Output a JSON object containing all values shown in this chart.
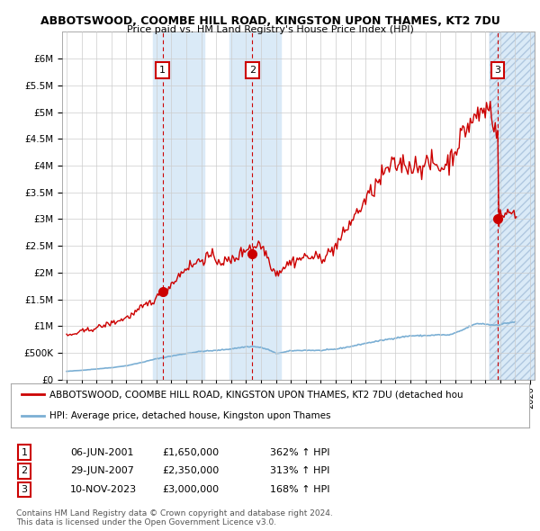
{
  "title": "ABBOTSWOOD, COOMBE HILL ROAD, KINGSTON UPON THAMES, KT2 7DU",
  "subtitle": "Price paid vs. HM Land Registry's House Price Index (HPI)",
  "sale_prices": [
    1650000,
    2350000,
    3000000
  ],
  "sale_labels": [
    "1",
    "2",
    "3"
  ],
  "sale_hpi_pct": [
    "362% ↑ HPI",
    "313% ↑ HPI",
    "168% ↑ HPI"
  ],
  "sale_date_labels": [
    "06-JUN-2001",
    "29-JUN-2007",
    "10-NOV-2023"
  ],
  "sale_price_labels": [
    "£1,650,000",
    "£2,350,000",
    "£3,000,000"
  ],
  "legend_line1": "ABBOTSWOOD, COOMBE HILL ROAD, KINGSTON UPON THAMES, KT2 7DU (detached hou",
  "legend_line2": "HPI: Average price, detached house, Kingston upon Thames",
  "footer1": "Contains HM Land Registry data © Crown copyright and database right 2024.",
  "footer2": "This data is licensed under the Open Government Licence v3.0.",
  "hpi_color": "#7bafd4",
  "price_color": "#cc0000",
  "label_box_color": "#cc0000",
  "shaded_color": "#daeaf7",
  "ylim": [
    0,
    6500000
  ],
  "yticks": [
    0,
    500000,
    1000000,
    1500000,
    2000000,
    2500000,
    3000000,
    3500000,
    4000000,
    4500000,
    5000000,
    5500000,
    6000000
  ],
  "ytick_labels": [
    "£0",
    "£500K",
    "£1M",
    "£1.5M",
    "£2M",
    "£2.5M",
    "£3M",
    "£3.5M",
    "£4M",
    "£4.5M",
    "£5M",
    "£5.5M",
    "£6M"
  ],
  "xlim_start": 1994.7,
  "xlim_end": 2026.3
}
